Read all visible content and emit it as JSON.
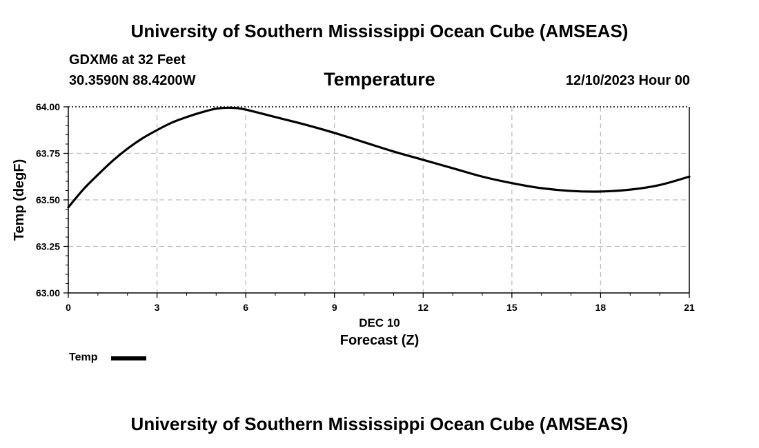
{
  "header": {
    "main_title": "University of Southern Mississippi Ocean Cube (AMSEAS)",
    "station": "GDXM6 at 32 Feet",
    "coordinates": "30.3590N  88.4200W",
    "timestamp": "12/10/2023 Hour 00"
  },
  "footer": {
    "main_title": "University of Southern Mississippi Ocean Cube (AMSEAS)"
  },
  "chart_data": {
    "type": "line",
    "title": "Temperature",
    "xlabel": "Forecast (Z)",
    "x_date_label": "DEC 10",
    "ylabel": "Temp (degF)",
    "xlim": [
      0,
      21
    ],
    "ylim": [
      63.0,
      64.0
    ],
    "x_ticks": [
      "0",
      "3",
      "6",
      "9",
      "12",
      "15",
      "18",
      "21"
    ],
    "x_tick_values": [
      0,
      3,
      6,
      9,
      12,
      15,
      18,
      21
    ],
    "y_ticks": [
      "63.00",
      "63.25",
      "63.50",
      "63.75",
      "64.00"
    ],
    "y_tick_values": [
      63.0,
      63.25,
      63.5,
      63.75,
      64.0
    ],
    "grid": true,
    "legend_position": "bottom-left",
    "series": [
      {
        "name": "Temp",
        "color": "#000000",
        "x": [
          0,
          0.5,
          1,
          1.5,
          2,
          2.5,
          3,
          3.5,
          4,
          4.5,
          5,
          5.5,
          6,
          7,
          8,
          9,
          10,
          11,
          12,
          13,
          14,
          15,
          16,
          17,
          18,
          19,
          20,
          21
        ],
        "values": [
          63.46,
          63.555,
          63.635,
          63.71,
          63.775,
          63.83,
          63.875,
          63.915,
          63.945,
          63.97,
          63.99,
          63.995,
          63.985,
          63.945,
          63.905,
          63.86,
          63.81,
          63.76,
          63.715,
          63.67,
          63.625,
          63.59,
          63.563,
          63.548,
          63.545,
          63.555,
          63.58,
          63.625
        ]
      }
    ]
  }
}
